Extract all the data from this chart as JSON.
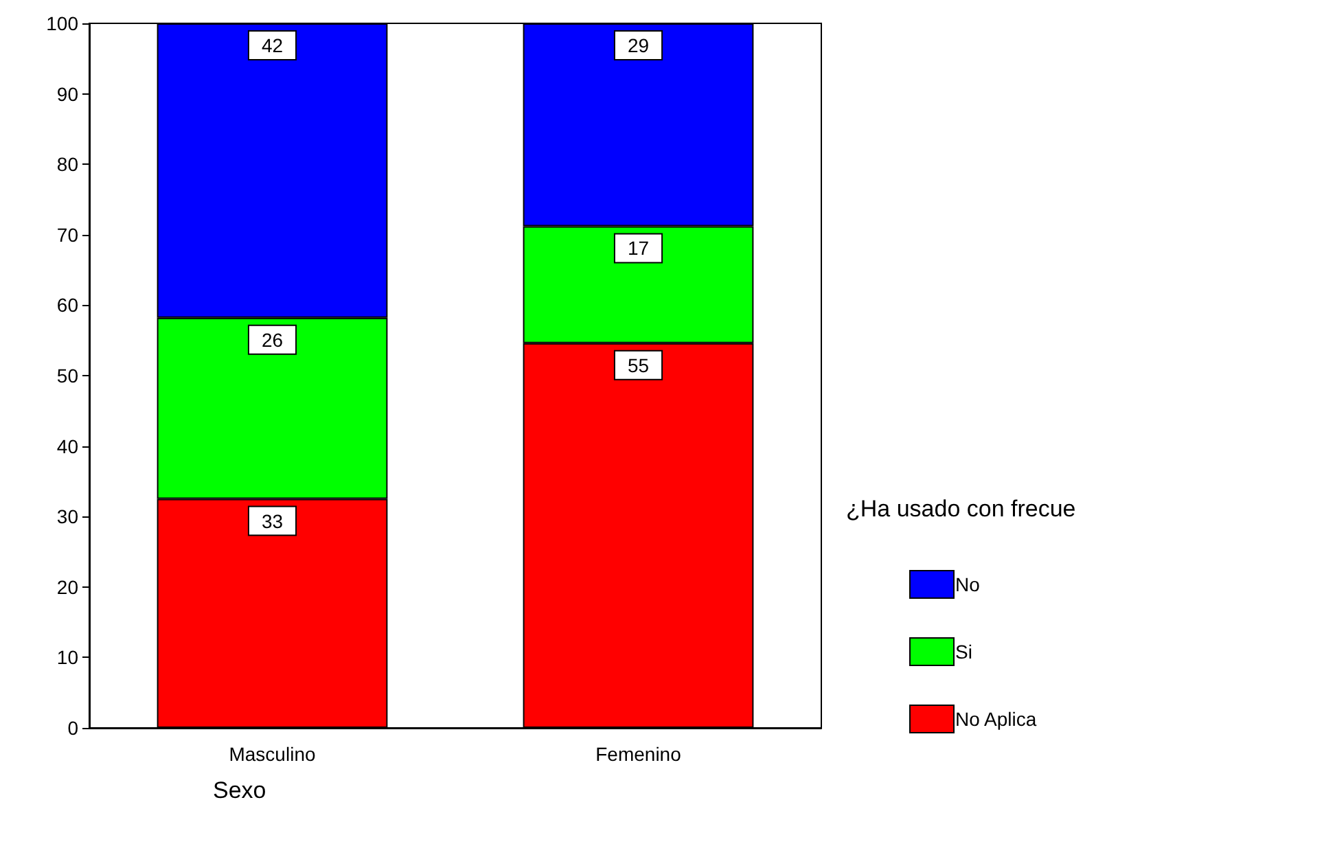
{
  "chart_data": {
    "type": "bar",
    "stacked": true,
    "categories": [
      "Masculino",
      "Femenino"
    ],
    "series": [
      {
        "name": "No Aplica",
        "color": "#ff0000",
        "values": [
          32.5,
          54.6
        ],
        "value_labels": [
          "33",
          "55"
        ]
      },
      {
        "name": "Si",
        "color": "#00ff00",
        "values": [
          25.7,
          16.6
        ],
        "value_labels": [
          "26",
          "17"
        ]
      },
      {
        "name": "No",
        "color": "#0000ff",
        "values": [
          41.8,
          28.8
        ],
        "value_labels": [
          "42",
          "29"
        ]
      }
    ],
    "xlabel": "Sexo",
    "legend_title": "¿Ha usado con frecue",
    "legend": "right",
    "ylim": [
      0,
      100
    ],
    "yticks": [
      0,
      10,
      20,
      30,
      40,
      50,
      60,
      70,
      80,
      90,
      100
    ],
    "grid": false
  }
}
